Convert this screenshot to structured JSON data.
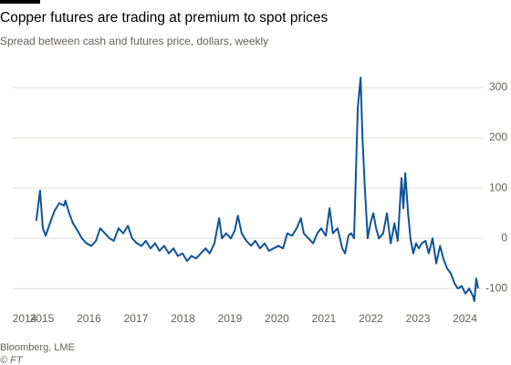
{
  "chart_data": {
    "type": "line",
    "title": "Copper futures are trading at premium to spot prices",
    "subtitle": "Spread between cash and futures price, dollars, weekly",
    "source": "Bloomberg, LME",
    "credit": "© FT",
    "x": [
      2014.88,
      2014.96,
      2015.02,
      2015.08,
      2015.17,
      2015.27,
      2015.37,
      2015.47,
      2015.5,
      2015.58,
      2015.66,
      2015.76,
      2015.85,
      2015.95,
      2016.05,
      2016.15,
      2016.24,
      2016.34,
      2016.44,
      2016.53,
      2016.63,
      2016.73,
      2016.83,
      2016.92,
      2017.02,
      2017.12,
      2017.21,
      2017.31,
      2017.41,
      2017.5,
      2017.6,
      2017.7,
      2017.8,
      2017.89,
      2017.99,
      2018.09,
      2018.18,
      2018.28,
      2018.38,
      2018.48,
      2018.57,
      2018.67,
      2018.77,
      2018.83,
      2018.92,
      2019.02,
      2019.1,
      2019.17,
      2019.25,
      2019.35,
      2019.45,
      2019.54,
      2019.64,
      2019.74,
      2019.83,
      2019.93,
      2020.03,
      2020.13,
      2020.22,
      2020.32,
      2020.42,
      2020.51,
      2020.57,
      2020.67,
      2020.77,
      2020.86,
      2020.94,
      2021.04,
      2021.12,
      2021.19,
      2021.29,
      2021.39,
      2021.45,
      2021.52,
      2021.58,
      2021.64,
      2021.72,
      2021.78,
      2021.82,
      2021.87,
      2021.93,
      2021.99,
      2022.05,
      2022.11,
      2022.17,
      2022.26,
      2022.34,
      2022.42,
      2022.5,
      2022.57,
      2022.65,
      2022.69,
      2022.73,
      2022.79,
      2022.84,
      2022.9,
      2022.96,
      2023.02,
      2023.08,
      2023.16,
      2023.23,
      2023.31,
      2023.39,
      2023.47,
      2023.54,
      2023.62,
      2023.7,
      2023.78,
      2023.85,
      2023.93,
      2024.01,
      2024.09,
      2024.17,
      2024.2,
      2024.24,
      2024.28
    ],
    "series": [
      {
        "name": "Spread",
        "color": "#0f5499",
        "values": [
          35,
          95,
          20,
          5,
          30,
          55,
          70,
          65,
          75,
          50,
          30,
          15,
          0,
          -10,
          -15,
          -5,
          20,
          10,
          0,
          -5,
          20,
          10,
          25,
          0,
          -10,
          -15,
          -5,
          -20,
          -10,
          -25,
          -15,
          -30,
          -20,
          -35,
          -30,
          -45,
          -35,
          -40,
          -30,
          -20,
          -30,
          -10,
          40,
          0,
          10,
          0,
          15,
          45,
          10,
          -5,
          -15,
          -5,
          -20,
          -10,
          -25,
          -20,
          -15,
          -20,
          10,
          5,
          20,
          40,
          10,
          0,
          -10,
          10,
          20,
          5,
          60,
          10,
          20,
          -20,
          -30,
          5,
          10,
          0,
          260,
          320,
          200,
          100,
          0,
          30,
          50,
          20,
          0,
          10,
          50,
          -10,
          30,
          -5,
          120,
          60,
          130,
          50,
          0,
          -30,
          -10,
          -20,
          -10,
          -5,
          -30,
          0,
          -50,
          -15,
          -40,
          -60,
          -70,
          -90,
          -100,
          -95,
          -110,
          -100,
          -115,
          -125,
          -80,
          -100
        ]
      }
    ],
    "xlim": [
      2014.38,
      2024.3
    ],
    "xticks": [
      2014,
      2015,
      2016,
      2017,
      2018,
      2019,
      2020,
      2021,
      2022,
      2023,
      2024
    ],
    "ylim": [
      -125,
      320
    ],
    "yticks": [
      -100,
      0,
      100,
      200,
      300
    ],
    "grid": true
  }
}
